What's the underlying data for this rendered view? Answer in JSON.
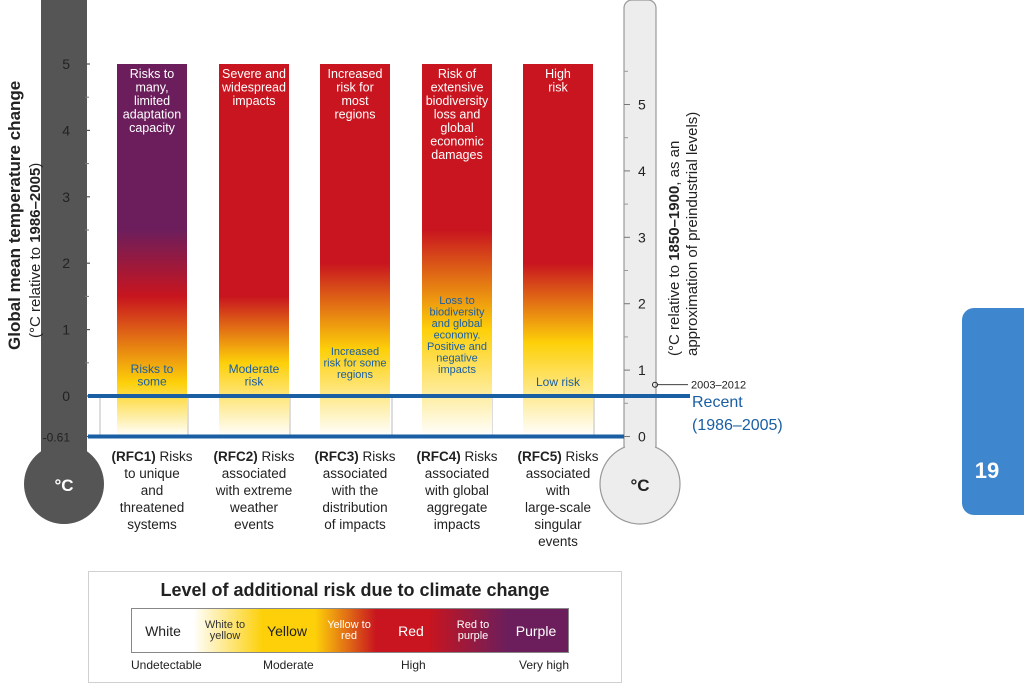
{
  "chart_data": {
    "type": "heatmap",
    "left_axis": {
      "label_line1": "Global mean temperature change",
      "label_line2_pre": "(°C relative to ",
      "label_line2_bold": "1986–2005",
      "label_line2_post": ")",
      "ticks": [
        "5",
        "4",
        "3",
        "2",
        "1",
        "0",
        "-0.61"
      ],
      "tick_values": [
        5,
        4,
        3,
        2,
        1,
        0,
        -0.61
      ],
      "unit": "°C",
      "range": [
        -0.61,
        5
      ]
    },
    "right_axis": {
      "label_line1_pre": "(°C relative to ",
      "label_line1_bold": "1850–1900",
      "label_line1_post": ", as an",
      "label_line2": "approximation of preindustrial levels)",
      "ticks": [
        "5",
        "4",
        "3",
        "2",
        "1",
        "0"
      ],
      "tick_values": [
        5,
        4,
        3,
        2,
        1,
        0
      ],
      "unit": "°C",
      "offset_vs_left": 0.61
    },
    "markers": {
      "recent_line1": "Recent",
      "recent_line2": "(1986–2005)",
      "period_label": "2003–2012",
      "period_value_right_axis": 0.78
    },
    "categories": [
      {
        "id": "RFC1",
        "top_label": [
          "Risks to",
          "many,",
          "limited",
          "adaptation",
          "capacity"
        ],
        "low_label": [
          "Risks to",
          "some"
        ],
        "bottom_bold": "(RFC1)",
        "bottom": [
          "Risks",
          "to unique",
          "and",
          "threatened",
          "systems"
        ],
        "transitions": [
          {
            "level": "white",
            "value": -0.61
          },
          {
            "level": "yellow",
            "value": 0.2
          },
          {
            "level": "red",
            "value": 1.5
          },
          {
            "level": "purple",
            "value": 2.5
          },
          {
            "level": "purple",
            "value": 5
          }
        ]
      },
      {
        "id": "RFC2",
        "top_label": [
          "Severe and",
          "widespread",
          "impacts"
        ],
        "low_label": [
          "Moderate",
          "risk"
        ],
        "bottom_bold": "(RFC2)",
        "bottom": [
          "Risks",
          "associated",
          "with extreme",
          "weather",
          "events"
        ],
        "transitions": [
          {
            "level": "white",
            "value": -0.61
          },
          {
            "level": "yellow",
            "value": 0.5
          },
          {
            "level": "red",
            "value": 1.5
          },
          {
            "level": "red",
            "value": 5
          }
        ]
      },
      {
        "id": "RFC3",
        "top_label": [
          "Increased",
          "risk for",
          "most",
          "regions"
        ],
        "low_label": [
          "Increased",
          "risk for some",
          "regions"
        ],
        "bottom_bold": "(RFC3)",
        "bottom": [
          "Risks",
          "associated",
          "with the",
          "distribution",
          "of impacts"
        ],
        "transitions": [
          {
            "level": "white",
            "value": -0.61
          },
          {
            "level": "yellow",
            "value": 0.7
          },
          {
            "level": "red",
            "value": 2.0
          },
          {
            "level": "red",
            "value": 5
          }
        ]
      },
      {
        "id": "RFC4",
        "top_label": [
          "Risk of",
          "extensive",
          "biodiversity",
          "loss and",
          "global",
          "economic",
          "damages"
        ],
        "low_label": [
          "Loss to",
          "biodiversity",
          "and global",
          "economy.",
          "Positive and",
          "negative",
          "impacts"
        ],
        "bottom_bold": "(RFC4)",
        "bottom": [
          "Risks",
          "associated",
          "with global",
          "aggregate",
          "impacts"
        ],
        "transitions": [
          {
            "level": "white",
            "value": -0.61
          },
          {
            "level": "yellow",
            "value": 1.0
          },
          {
            "level": "red",
            "value": 2.5
          },
          {
            "level": "red",
            "value": 5
          }
        ]
      },
      {
        "id": "RFC5",
        "top_label": [
          "High",
          "risk"
        ],
        "low_label": [
          "Low risk"
        ],
        "bottom_bold": "(RFC5)",
        "bottom": [
          "Risks",
          "associated",
          "with",
          "large-scale",
          "singular",
          "events"
        ],
        "transitions": [
          {
            "level": "white",
            "value": -0.61
          },
          {
            "level": "yellow",
            "value": 0.8
          },
          {
            "level": "red",
            "value": 2.0
          },
          {
            "level": "red",
            "value": 5
          }
        ]
      }
    ],
    "legend": {
      "title": "Level of additional risk due to climate change",
      "levels": [
        "White",
        "White to yellow",
        "Yellow",
        "Yellow to red",
        "Red",
        "Red to purple",
        "Purple"
      ],
      "scale": [
        "Undetectable",
        "Moderate",
        "High",
        "Very high"
      ]
    }
  },
  "colors": {
    "white": "#ffffff",
    "yellow": "#fdd009",
    "red": "#c8151f",
    "purple": "#6c1e5c",
    "recent_line": "#1a5ea3",
    "left_thermo": "#555555",
    "right_thermo": "#ededed",
    "page_tab": "#3e87cf"
  },
  "page": {
    "number": "19"
  }
}
